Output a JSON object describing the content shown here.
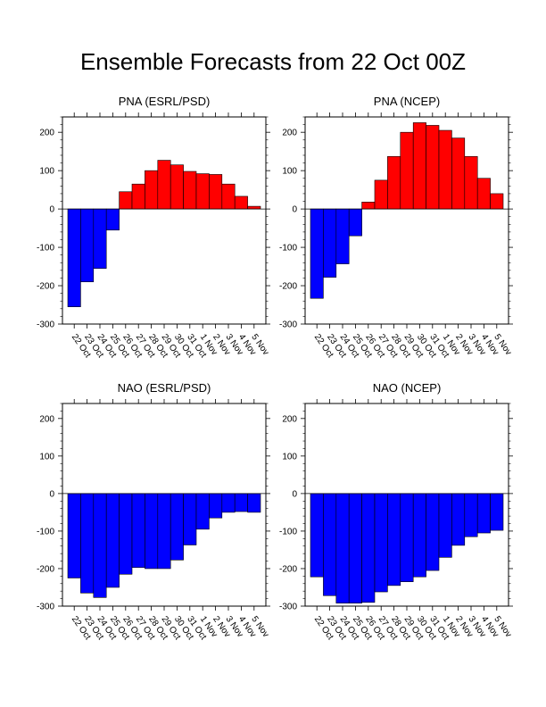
{
  "figure": {
    "title": "Ensemble Forecasts from 22 Oct 00Z",
    "positive_color": "#ff0000",
    "negative_color": "#0000ff",
    "bar_outline_color": "#000000"
  },
  "chart_data": [
    {
      "type": "bar",
      "title": "PNA (ESRL/PSD)",
      "xlabel": "",
      "ylabel": "",
      "ylim": [
        -300,
        240
      ],
      "yticks": [
        -300,
        -200,
        -100,
        0,
        100,
        200
      ],
      "grid": false,
      "categories": [
        "22 Oct",
        "23 Oct",
        "24 Oct",
        "25 Oct",
        "26 Oct",
        "27 Oct",
        "28 Oct",
        "29 Oct",
        "30 Oct",
        "31 Oct",
        "1 Nov",
        "2 Nov",
        "3 Nov",
        "4 Nov",
        "5 Nov"
      ],
      "values": [
        -255,
        -190,
        -155,
        -55,
        45,
        65,
        100,
        127,
        115,
        98,
        92,
        90,
        65,
        33,
        7
      ]
    },
    {
      "type": "bar",
      "title": "PNA (NCEP)",
      "xlabel": "",
      "ylabel": "",
      "ylim": [
        -300,
        240
      ],
      "yticks": [
        -300,
        -200,
        -100,
        0,
        100,
        200
      ],
      "grid": false,
      "categories": [
        "22 Oct",
        "23 Oct",
        "24 Oct",
        "25 Oct",
        "26 Oct",
        "27 Oct",
        "28 Oct",
        "29 Oct",
        "30 Oct",
        "31 Oct",
        "1 Nov",
        "2 Nov",
        "3 Nov",
        "4 Nov",
        "5 Nov"
      ],
      "values": [
        -233,
        -178,
        -143,
        -70,
        18,
        75,
        137,
        200,
        225,
        218,
        205,
        185,
        137,
        80,
        40
      ]
    },
    {
      "type": "bar",
      "title": "NAO (ESRL/PSD)",
      "xlabel": "",
      "ylabel": "",
      "ylim": [
        -300,
        240
      ],
      "yticks": [
        -300,
        -200,
        -100,
        0,
        100,
        200
      ],
      "grid": false,
      "categories": [
        "22 Oct",
        "23 Oct",
        "24 Oct",
        "25 Oct",
        "26 Oct",
        "27 Oct",
        "28 Oct",
        "29 Oct",
        "30 Oct",
        "31 Oct",
        "1 Nov",
        "2 Nov",
        "3 Nov",
        "4 Nov",
        "5 Nov"
      ],
      "values": [
        -225,
        -265,
        -277,
        -250,
        -215,
        -197,
        -200,
        -200,
        -177,
        -137,
        -95,
        -65,
        -50,
        -48,
        -50
      ]
    },
    {
      "type": "bar",
      "title": "NAO (NCEP)",
      "xlabel": "",
      "ylabel": "",
      "ylim": [
        -300,
        240
      ],
      "yticks": [
        -300,
        -200,
        -100,
        0,
        100,
        200
      ],
      "grid": false,
      "categories": [
        "22 Oct",
        "23 Oct",
        "24 Oct",
        "25 Oct",
        "26 Oct",
        "27 Oct",
        "28 Oct",
        "29 Oct",
        "30 Oct",
        "31 Oct",
        "1 Nov",
        "2 Nov",
        "3 Nov",
        "4 Nov",
        "5 Nov"
      ],
      "values": [
        -222,
        -272,
        -292,
        -292,
        -290,
        -262,
        -245,
        -235,
        -222,
        -205,
        -170,
        -138,
        -115,
        -105,
        -98
      ]
    }
  ]
}
